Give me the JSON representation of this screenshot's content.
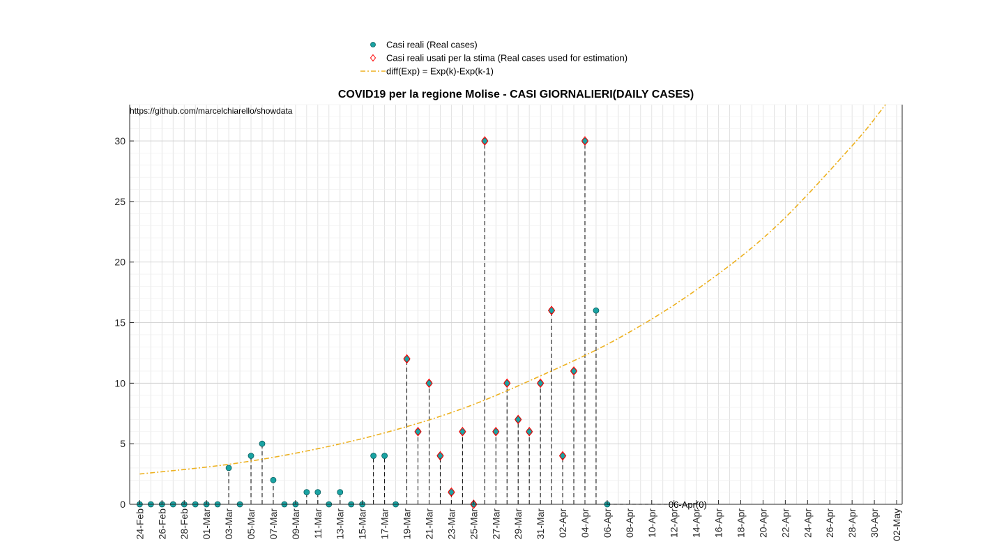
{
  "chart_data": {
    "type": "scatter",
    "title": "COVID19 per la regione Molise - CASI GIORNALIERI(DAILY CASES)",
    "watermark": "https://github.com/marcelchiarello/showdata",
    "xlabel": "",
    "ylabel": "",
    "xlim": [
      "2020-02-24",
      "2020-05-03"
    ],
    "ylim": [
      0,
      33
    ],
    "y_ticks": [
      0,
      5,
      10,
      15,
      20,
      25,
      30
    ],
    "x_ticks": [
      "24-Feb",
      "26-Feb",
      "28-Feb",
      "01-Mar",
      "03-Mar",
      "05-Mar",
      "07-Mar",
      "09-Mar",
      "11-Mar",
      "13-Mar",
      "15-Mar",
      "17-Mar",
      "19-Mar",
      "21-Mar",
      "23-Mar",
      "25-Mar",
      "27-Mar",
      "29-Mar",
      "31-Mar",
      "02-Apr",
      "04-Apr",
      "06-Apr",
      "08-Apr",
      "10-Apr",
      "12-Apr",
      "14-Apr",
      "16-Apr",
      "18-Apr",
      "20-Apr",
      "22-Apr",
      "24-Apr",
      "26-Apr",
      "28-Apr",
      "30-Apr",
      "02-May"
    ],
    "grid": true,
    "legend_position": "top-center",
    "legend": [
      {
        "label": "Casi reali (Real cases)",
        "marker": "filled-circle",
        "color": "#1aa3a3"
      },
      {
        "label": "Casi reali usati per la stima (Real cases used for estimation)",
        "marker": "open-diamond",
        "color": "#ff0000"
      },
      {
        "label": "diff(Exp) = Exp(k)-Exp(k-1)",
        "marker": "dash-dot-line",
        "color": "#EDB120"
      }
    ],
    "series": [
      {
        "name": "Casi reali (Real cases)",
        "x": [
          "2020-02-24",
          "2020-02-25",
          "2020-02-26",
          "2020-02-27",
          "2020-02-28",
          "2020-02-29",
          "2020-03-01",
          "2020-03-02",
          "2020-03-03",
          "2020-03-04",
          "2020-03-05",
          "2020-03-06",
          "2020-03-07",
          "2020-03-08",
          "2020-03-09",
          "2020-03-10",
          "2020-03-11",
          "2020-03-12",
          "2020-03-13",
          "2020-03-14",
          "2020-03-15",
          "2020-03-16",
          "2020-03-17",
          "2020-03-18",
          "2020-03-19",
          "2020-03-20",
          "2020-03-21",
          "2020-03-22",
          "2020-03-23",
          "2020-03-24",
          "2020-03-25",
          "2020-03-26",
          "2020-03-27",
          "2020-03-28",
          "2020-03-29",
          "2020-03-30",
          "2020-03-31",
          "2020-04-01",
          "2020-04-02",
          "2020-04-03",
          "2020-04-04",
          "2020-04-05",
          "2020-04-06"
        ],
        "y": [
          0,
          0,
          0,
          0,
          0,
          0,
          0,
          0,
          3,
          0,
          4,
          5,
          2,
          0,
          0,
          1,
          1,
          0,
          1,
          0,
          0,
          4,
          4,
          0,
          12,
          6,
          10,
          4,
          1,
          6,
          0,
          30,
          6,
          10,
          7,
          6,
          10,
          16,
          4,
          11,
          30,
          16,
          0
        ]
      },
      {
        "name": "Casi reali usati per la stima (Real cases used for estimation)",
        "x": [
          "2020-03-19",
          "2020-03-20",
          "2020-03-21",
          "2020-03-22",
          "2020-03-23",
          "2020-03-24",
          "2020-03-25",
          "2020-03-26",
          "2020-03-27",
          "2020-03-28",
          "2020-03-29",
          "2020-03-30",
          "2020-03-31",
          "2020-04-01",
          "2020-04-02",
          "2020-04-03",
          "2020-04-04"
        ],
        "y": [
          12,
          6,
          10,
          4,
          1,
          6,
          0,
          30,
          6,
          10,
          7,
          6,
          10,
          16,
          4,
          11,
          30
        ]
      },
      {
        "name": "diff(Exp) = Exp(k)-Exp(k-1)",
        "x": [
          "2020-02-24",
          "2020-03-03",
          "2020-03-10",
          "2020-03-17",
          "2020-03-24",
          "2020-03-31",
          "2020-04-07",
          "2020-04-14",
          "2020-04-21",
          "2020-04-28",
          "2020-05-01"
        ],
        "y": [
          2.5,
          3.3,
          4.4,
          5.9,
          7.9,
          10.6,
          13.7,
          17.7,
          22.8,
          29.6,
          33
        ]
      }
    ],
    "annotations": [
      {
        "text": "06-Apr(0)",
        "x": "2020-04-06",
        "y": 0
      }
    ]
  }
}
